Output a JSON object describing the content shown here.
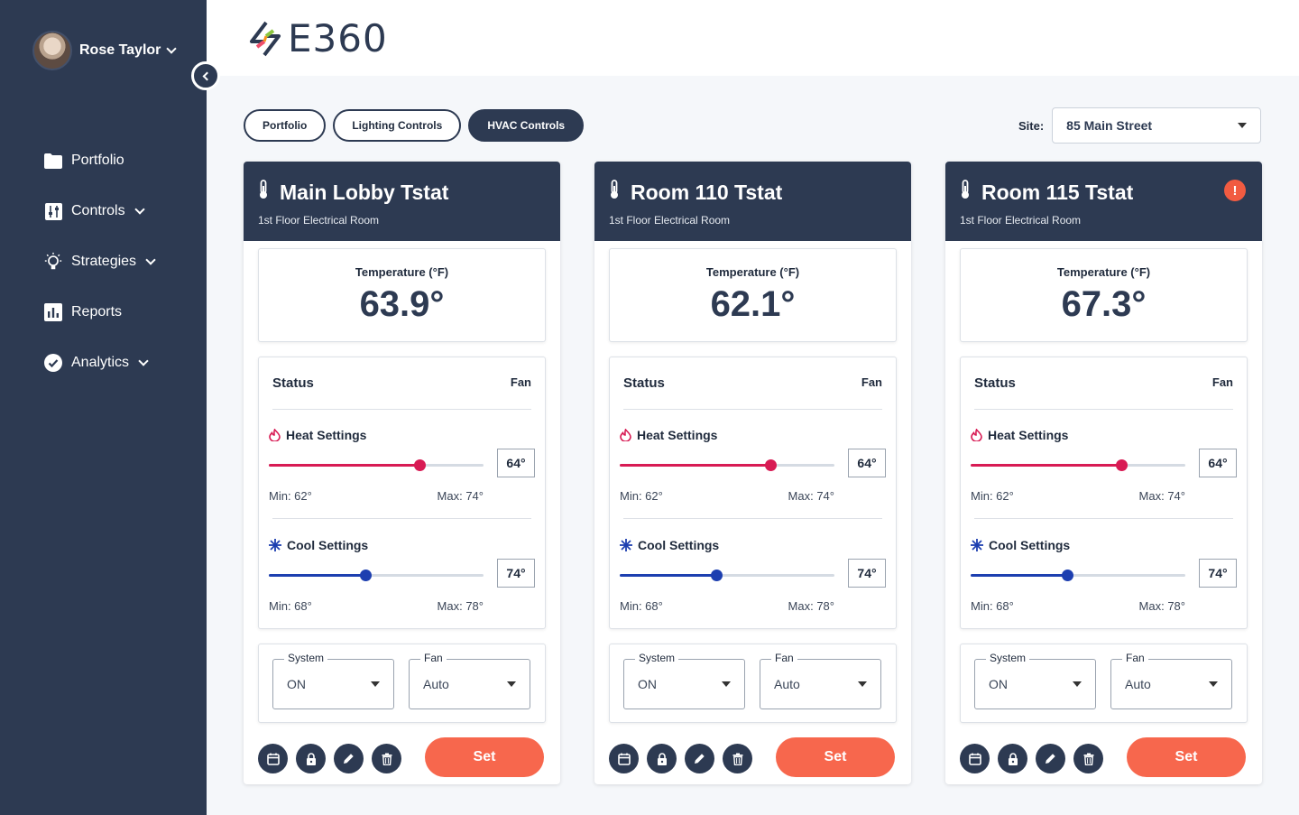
{
  "user": {
    "name": "Rose Taylor"
  },
  "logo": {
    "text": "E360"
  },
  "nav": [
    {
      "label": "Portfolio",
      "icon": "folder-icon",
      "caret": false
    },
    {
      "label": "Controls",
      "icon": "sliders-icon",
      "caret": true
    },
    {
      "label": "Strategies",
      "icon": "lightbulb-icon",
      "caret": true
    },
    {
      "label": "Reports",
      "icon": "bar-chart-icon",
      "caret": false
    },
    {
      "label": "Analytics",
      "icon": "check-circle-icon",
      "caret": true
    }
  ],
  "tabs": [
    {
      "label": "Portfolio",
      "active": false
    },
    {
      "label": "Lighting Controls",
      "active": false
    },
    {
      "label": "HVAC Controls",
      "active": true
    }
  ],
  "site": {
    "label": "Site:",
    "value": "85 Main Street"
  },
  "colors": {
    "navy": "#2d3a52",
    "accent": "#f7674d",
    "heat": "#d81b54",
    "cool": "#1d3fb0",
    "alert": "#f15b41"
  },
  "common": {
    "temp_label": "Temperature (°F)",
    "status_label": "Status",
    "fan_label": "Fan",
    "heat_label": "Heat Settings",
    "cool_label": "Cool Settings",
    "system_legend": "System",
    "fan_legend": "Fan",
    "set_label": "Set"
  },
  "cards": [
    {
      "title": "Main Lobby Tstat",
      "subtitle": "1st Floor Electrical Room",
      "temperature": "63.9°",
      "alert": false,
      "heat": {
        "value": "64°",
        "level": 0.7,
        "min": "Min: 62°",
        "max": "Max: 74°"
      },
      "cool": {
        "value": "74°",
        "level": 0.45,
        "min": "Min: 68°",
        "max": "Max: 78°"
      },
      "system": "ON",
      "fan": "Auto"
    },
    {
      "title": "Room 110 Tstat",
      "subtitle": "1st Floor Electrical Room",
      "temperature": "62.1°",
      "alert": false,
      "heat": {
        "value": "64°",
        "level": 0.7,
        "min": "Min: 62°",
        "max": "Max: 74°"
      },
      "cool": {
        "value": "74°",
        "level": 0.45,
        "min": "Min: 68°",
        "max": "Max: 78°"
      },
      "system": "ON",
      "fan": "Auto"
    },
    {
      "title": "Room 115 Tstat",
      "subtitle": "1st Floor Electrical Room",
      "temperature": "67.3°",
      "alert": true,
      "alert_symbol": "!",
      "heat": {
        "value": "64°",
        "level": 0.7,
        "min": "Min: 62°",
        "max": "Max: 74°"
      },
      "cool": {
        "value": "74°",
        "level": 0.45,
        "min": "Min: 68°",
        "max": "Max: 78°"
      },
      "system": "ON",
      "fan": "Auto"
    }
  ]
}
